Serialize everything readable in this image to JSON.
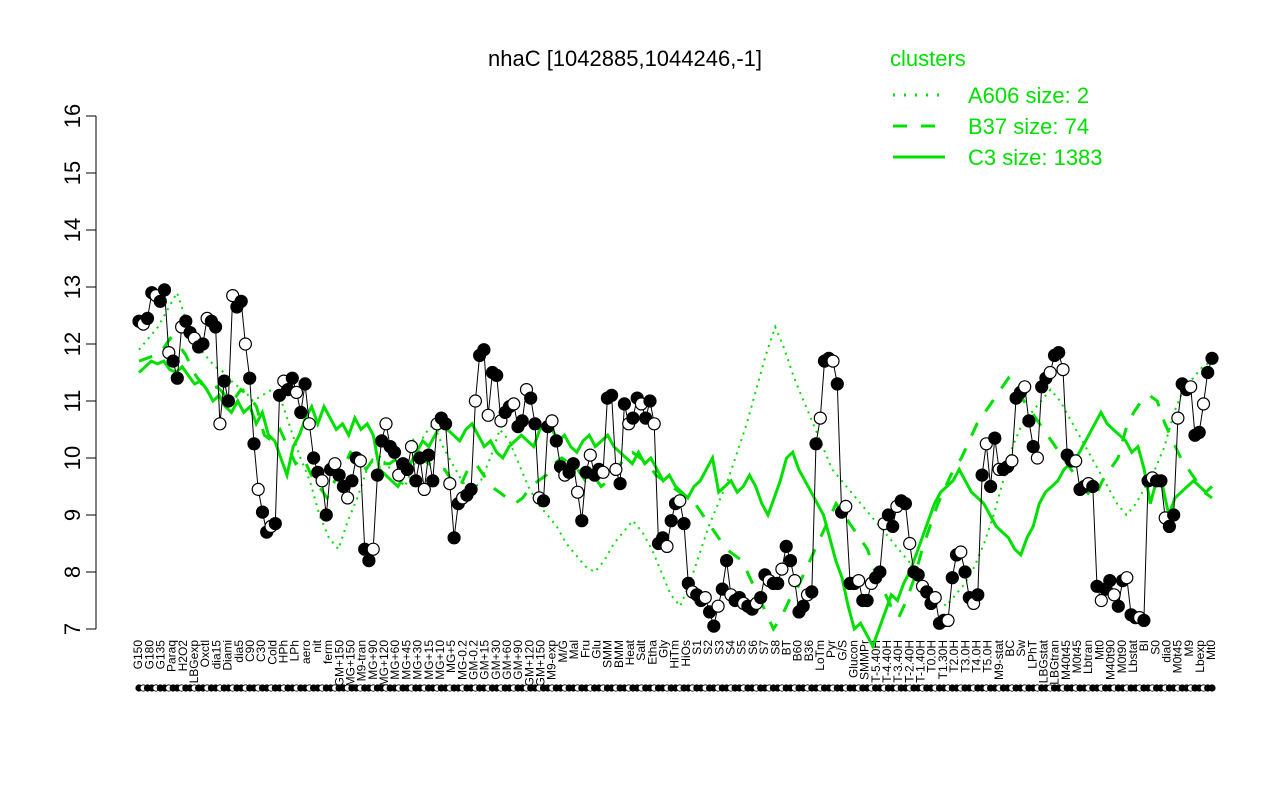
{
  "chart_data": {
    "type": "line",
    "title": "nhaC [1042885,1044246,-1]",
    "xlabel": "",
    "ylabel": "",
    "ylim": [
      7,
      16
    ],
    "yticks": [
      7,
      8,
      9,
      10,
      11,
      12,
      13,
      14,
      15,
      16
    ],
    "x_tick_labels": [
      "G150",
      "G180",
      "G135",
      "Paraq",
      "H2O2",
      "LBGexp",
      "Oxctl",
      "dia15",
      "Diami",
      "dia5",
      "C90",
      "C30",
      "Cold",
      "HPh",
      "LPh",
      "aero",
      "nit",
      "ferm",
      "GM+150",
      "MG+150",
      "M9-tran",
      "MG+90",
      "MG+120",
      "MG+60",
      "MG+45",
      "MG+30",
      "MG+15",
      "MG+10",
      "MG+5",
      "MG-0.2",
      "GM-0.2",
      "GM+15",
      "GM+30",
      "GM+60",
      "GM+90",
      "GM+120",
      "GM+150",
      "M9-exp",
      "M/G",
      "Mal",
      "Fru",
      "Glu",
      "SMM",
      "BMM",
      "Heat",
      "Salt",
      "Etha",
      "Gly",
      "HiTm",
      "HiOs",
      "S1",
      "S2",
      "S3",
      "S4",
      "S5",
      "S6",
      "S7",
      "S8",
      "BT",
      "B60",
      "B36",
      "LoTm",
      "Pyr",
      "G/S",
      "Glucon",
      "SMMPr",
      "T-5.40H",
      "T-4.40H",
      "T-3.40H",
      "T-2.40H",
      "T-1.40H",
      "T0.0H",
      "T1.30H",
      "T2.0H",
      "T3.0H",
      "T4.0H",
      "T5.0H",
      "M9-stat",
      "BC",
      "Sw",
      "LPhT",
      "LBGstat",
      "LBGtran",
      "M40t45",
      "M0t45",
      "Lbtran",
      "Mt0",
      "M40t90",
      "M0t90",
      "Lbstat",
      "BI",
      "S0",
      "dia0",
      "M0t45",
      "M9",
      "Lbexp",
      "Mt0"
    ],
    "legend": {
      "title": "clusters",
      "placement": "top-right",
      "entries": [
        {
          "label": "A606 size: 2",
          "style": "dotted"
        },
        {
          "label": "B37 size: 74",
          "style": "dashed"
        },
        {
          "label": "C3 size: 1383",
          "style": "solid"
        }
      ]
    },
    "series": [
      {
        "style": "points-line",
        "y": [
          12.4,
          12.35,
          12.45,
          12.9,
          12.85,
          12.75,
          12.95,
          11.85,
          11.7,
          11.4,
          12.3,
          12.4,
          12.2,
          12.1,
          11.95,
          12.0,
          12.45,
          12.4,
          12.3,
          10.6,
          11.35,
          11.0,
          12.85,
          12.65,
          12.75,
          12.0,
          11.4,
          10.25,
          9.45,
          9.05,
          8.7,
          8.8,
          8.85,
          11.1,
          11.35,
          11.2,
          11.4,
          11.15,
          10.8,
          11.3,
          10.6,
          10.0,
          9.75,
          9.6,
          9.0,
          9.8,
          9.9,
          9.7,
          9.5,
          9.3,
          9.6,
          10.0,
          9.95,
          8.4,
          8.2,
          8.4,
          9.7,
          10.3,
          10.6,
          10.2,
          10.1,
          9.7,
          9.9,
          9.8,
          10.2,
          9.6,
          10.0,
          9.45,
          10.05,
          9.6,
          10.6,
          10.7,
          10.6,
          9.55,
          8.6,
          9.2,
          9.3,
          9.35,
          9.45,
          11.0,
          11.8,
          11.9,
          10.75,
          11.5,
          11.45,
          10.65,
          10.8,
          10.9,
          10.95,
          10.55,
          10.65,
          11.2,
          11.05,
          10.6,
          9.3,
          9.25,
          10.55,
          10.65,
          10.3,
          9.85,
          9.7,
          9.75,
          9.9,
          9.4,
          8.9,
          9.75,
          10.05,
          9.7,
          9.8,
          9.75,
          11.05,
          11.1,
          9.8,
          9.55,
          10.95,
          10.6,
          10.7,
          11.05,
          10.95,
          10.7,
          11.0,
          10.6,
          8.5,
          8.6,
          8.45,
          8.9,
          9.2,
          9.25,
          8.85,
          7.8,
          7.65,
          7.6,
          7.5,
          7.55,
          7.3,
          7.05,
          7.4,
          7.7,
          8.2,
          7.6,
          7.5,
          7.55,
          7.45,
          7.4,
          7.35,
          7.45,
          7.55,
          7.95,
          7.85,
          7.8,
          7.8,
          8.05,
          8.45,
          8.2,
          7.85,
          7.3,
          7.4,
          7.6,
          7.65,
          10.25,
          10.7,
          11.7,
          11.75,
          11.7,
          11.3,
          9.05,
          9.15,
          7.8,
          7.8,
          7.85,
          7.5,
          7.5,
          7.8,
          7.9,
          8.0,
          8.85,
          9.0,
          8.8,
          9.15,
          9.25,
          9.2,
          8.5,
          8.0,
          7.95,
          7.75,
          7.65,
          7.45,
          7.55,
          7.1,
          7.15,
          7.15,
          7.9,
          8.3,
          8.35,
          8.0,
          7.55,
          7.45,
          7.6,
          9.7,
          10.25,
          9.5,
          10.35,
          9.8,
          9.8,
          9.85,
          9.95,
          11.05,
          11.15,
          11.25,
          10.65,
          10.2,
          10.0,
          11.25,
          11.4,
          11.5,
          11.8,
          11.85,
          11.55,
          10.05,
          9.95,
          9.95,
          9.45,
          9.5,
          9.55,
          9.5,
          7.75,
          7.5,
          7.7,
          7.85,
          7.6,
          7.4,
          7.85,
          7.9,
          7.25,
          7.2,
          7.2,
          7.15,
          9.6,
          9.65,
          9.6,
          9.6,
          8.95,
          8.8,
          9.0,
          10.7,
          11.3,
          11.2,
          11.25,
          10.4,
          10.45,
          10.95,
          11.5,
          11.75
        ]
      },
      {
        "name": "C3 size: 1383",
        "style": "solid",
        "y": [
          11.5,
          11.6,
          11.7,
          11.65,
          11.7,
          11.55,
          11.5,
          11.6,
          11.45,
          11.3,
          11.35,
          11.2,
          11.0,
          11.1,
          10.9,
          10.8,
          11.0,
          10.8,
          10.9,
          10.6,
          10.8,
          10.4,
          10.3,
          10.0,
          9.7,
          10.2,
          10.4,
          10.7,
          10.9,
          10.6,
          10.9,
          10.7,
          10.5,
          10.6,
          10.4,
          10.7,
          10.5,
          10.6,
          10.4,
          9.8,
          9.7,
          9.6,
          9.5,
          9.7,
          9.9,
          10.1,
          10.3,
          10.2,
          10.4,
          10.6,
          10.5,
          10.4,
          10.3,
          10.5,
          10.6,
          10.4,
          10.2,
          10.3,
          10.1,
          10.0,
          10.2,
          10.3,
          10.4,
          10.3,
          10.2,
          10.5,
          10.6,
          10.5,
          10.3,
          10.4,
          10.2,
          10.1,
          10.3,
          10.4,
          10.2,
          10.3,
          10.4,
          10.2,
          10.1,
          10.0,
          9.9,
          10.1,
          9.9,
          10.0,
          9.8,
          9.6,
          9.7,
          9.5,
          9.4,
          9.3,
          9.5,
          9.6,
          9.8,
          10.0,
          9.4,
          9.5,
          9.6,
          9.4,
          9.5,
          9.7,
          9.5,
          9.2,
          9.0,
          9.3,
          9.6,
          10.0,
          10.1,
          9.8,
          9.6,
          9.4,
          9.2,
          9.0,
          8.6,
          8.2,
          7.9,
          7.4,
          7.0,
          7.1,
          6.9,
          6.7,
          7.0,
          7.3,
          7.6,
          7.5,
          7.8,
          8.0,
          8.3,
          8.6,
          8.9,
          9.2,
          9.4,
          9.5,
          9.6,
          9.8,
          9.6,
          9.4,
          9.3,
          9.2,
          9.0,
          8.8,
          8.7,
          8.6,
          8.4,
          8.3,
          8.6,
          8.8,
          9.2,
          9.4,
          9.5,
          9.6,
          9.8,
          9.9,
          10.0,
          10.2,
          10.4,
          10.6,
          10.8,
          10.6,
          10.5,
          10.4,
          10.3,
          10.1,
          10.2,
          9.8,
          9.2,
          9.6,
          9.5,
          9.0,
          9.3,
          9.4,
          9.5,
          9.6,
          9.5,
          9.4,
          9.5
        ]
      },
      {
        "name": "B37 size: 74",
        "style": "dashed",
        "y": [
          11.7,
          11.75,
          11.8,
          11.9,
          12.1,
          12.0,
          11.8,
          11.5,
          11.3,
          11.2,
          11.25,
          11.1,
          11.0,
          11.2,
          11.1,
          10.9,
          10.4,
          10.3,
          10.5,
          10.2,
          9.9,
          10.0,
          9.7,
          9.5,
          9.3,
          9.6,
          9.8,
          10.1,
          10.0,
          9.8,
          10.0,
          9.9,
          9.9,
          10.0,
          10.1,
          10.3,
          10.0,
          9.9,
          9.8,
          9.8,
          9.6,
          9.5,
          9.8,
          9.9,
          9.7,
          9.5,
          9.4,
          9.3,
          9.2,
          9.3,
          9.5,
          9.6,
          9.7,
          9.9,
          10.0,
          9.9,
          9.8,
          9.6,
          9.7,
          9.5,
          9.6,
          9.8,
          10.0,
          10.1,
          10.0,
          9.9,
          9.7,
          9.6,
          9.5,
          9.4,
          9.3,
          9.2,
          9.0,
          8.8,
          8.6,
          8.4,
          8.3,
          8.2,
          7.9,
          7.6,
          7.3,
          7.0,
          7.2,
          7.5,
          7.7,
          8.0,
          8.3,
          8.6,
          8.9,
          9.2,
          9.0,
          8.8,
          8.6,
          8.4,
          8.0,
          7.7,
          7.4,
          7.2,
          7.5,
          7.9,
          8.4,
          8.8,
          9.2,
          9.5,
          9.8,
          10.0,
          10.3,
          10.6,
          10.8,
          11.0,
          11.2,
          11.4,
          11.2,
          11.0,
          10.8,
          10.6,
          10.4,
          10.2,
          10.0,
          9.8,
          9.6,
          9.4,
          9.3,
          9.6,
          9.8,
          10.0,
          10.5,
          10.8,
          11.0,
          11.1,
          11.0,
          10.6,
          10.3,
          10.0,
          9.8,
          9.6,
          9.4,
          9.3
        ]
      },
      {
        "name": "A606 size: 2",
        "style": "dotted",
        "y": [
          11.9,
          12.1,
          12.3,
          12.6,
          12.9,
          12.4,
          12.0,
          11.8,
          11.6,
          11.5,
          11.3,
          11.2,
          11.0,
          11.1,
          11.2,
          11.0,
          10.5,
          10.0,
          9.6,
          9.0,
          8.6,
          8.4,
          8.9,
          9.3,
          9.8,
          10.1,
          9.9,
          9.7,
          9.5,
          9.9,
          10.4,
          10.6,
          10.2,
          9.9,
          9.6,
          9.4,
          9.6,
          10.0,
          10.5,
          10.3,
          9.9,
          9.5,
          9.2,
          9.0,
          8.8,
          8.5,
          8.3,
          8.1,
          8.0,
          8.2,
          8.5,
          8.7,
          8.9,
          8.7,
          8.4,
          8.0,
          7.6,
          7.4,
          7.8,
          8.3,
          8.8,
          9.2,
          9.6,
          10.1,
          10.6,
          11.2,
          11.8,
          12.3,
          11.9,
          11.4,
          11.0,
          10.6,
          10.2,
          9.8,
          9.6,
          9.4,
          9.2,
          9.0,
          8.8,
          8.6,
          8.4,
          8.2,
          8.0,
          7.8,
          7.6,
          7.4,
          7.6,
          7.8,
          8.1,
          8.5,
          9.0,
          9.6,
          10.2,
          10.6,
          10.8,
          11.0,
          11.2,
          11.0,
          10.7,
          10.4,
          10.1,
          9.8,
          9.5,
          9.2,
          9.0,
          9.2,
          9.5,
          9.8,
          10.2,
          10.8,
          11.2,
          11.4,
          11.6,
          11.7
        ]
      }
    ],
    "colors": {
      "axis": "#000000",
      "points_filled": "#000000",
      "points_open_fill": "#ffffff",
      "series_line": "#000000",
      "cluster_lines": "#00e000",
      "legend_text": "#00e000"
    }
  }
}
